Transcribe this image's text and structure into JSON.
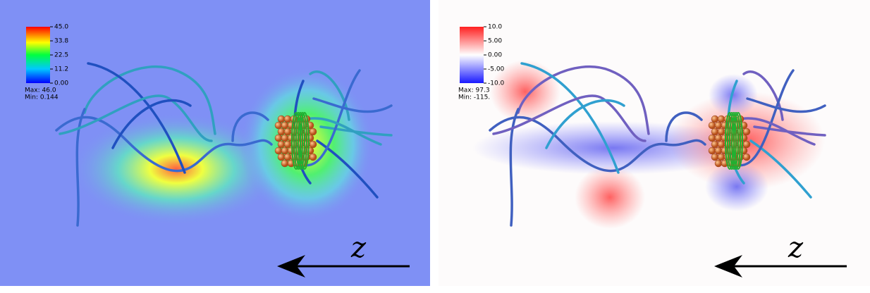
{
  "panels": [
    {
      "colorbar": {
        "ticks": [
          "45.0",
          "33.8",
          "22.5",
          "11.2",
          "0.00"
        ]
      },
      "max": "Max:  46.0",
      "min": "Min:  0.144",
      "axis_label": "z"
    },
    {
      "colorbar": {
        "ticks": [
          "10.0",
          "5.00",
          "0.00",
          "-5.00",
          "-10.0"
        ]
      },
      "max": "Max:  97.3",
      "min": "Min:  -115.",
      "axis_label": "z"
    }
  ]
}
